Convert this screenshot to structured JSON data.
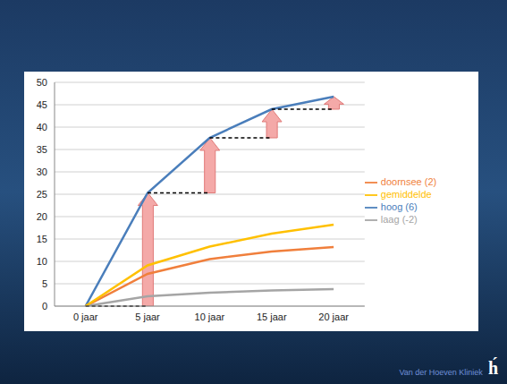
{
  "chart_data": {
    "type": "line",
    "categories": [
      "0 jaar",
      "5 jaar",
      "10 jaar",
      "15 jaar",
      "20 jaar"
    ],
    "series": [
      {
        "name": "hoog (6)",
        "color": "#4a7ebb",
        "values": [
          0,
          25.3,
          37.6,
          44,
          46.8
        ]
      },
      {
        "name": "doornsee (2)",
        "color": "#f07f3c",
        "values": [
          0,
          7.2,
          10.5,
          12.2,
          13.2
        ]
      },
      {
        "name": "laag (-2)",
        "color": "#a5a5a5",
        "values": [
          0,
          2.2,
          3,
          3.5,
          3.8
        ]
      },
      {
        "name": "gemiddelde",
        "color": "#ffc000",
        "values": [
          0,
          9.1,
          13.3,
          16.2,
          18.2
        ]
      }
    ],
    "ylim": [
      0,
      50
    ],
    "yticks": [
      0,
      5,
      10,
      15,
      20,
      25,
      30,
      35,
      40,
      45,
      50
    ],
    "grid": true,
    "legend": "right"
  },
  "footer": {
    "text": "Van der Hoeven Kliniek",
    "logo": "h́"
  }
}
